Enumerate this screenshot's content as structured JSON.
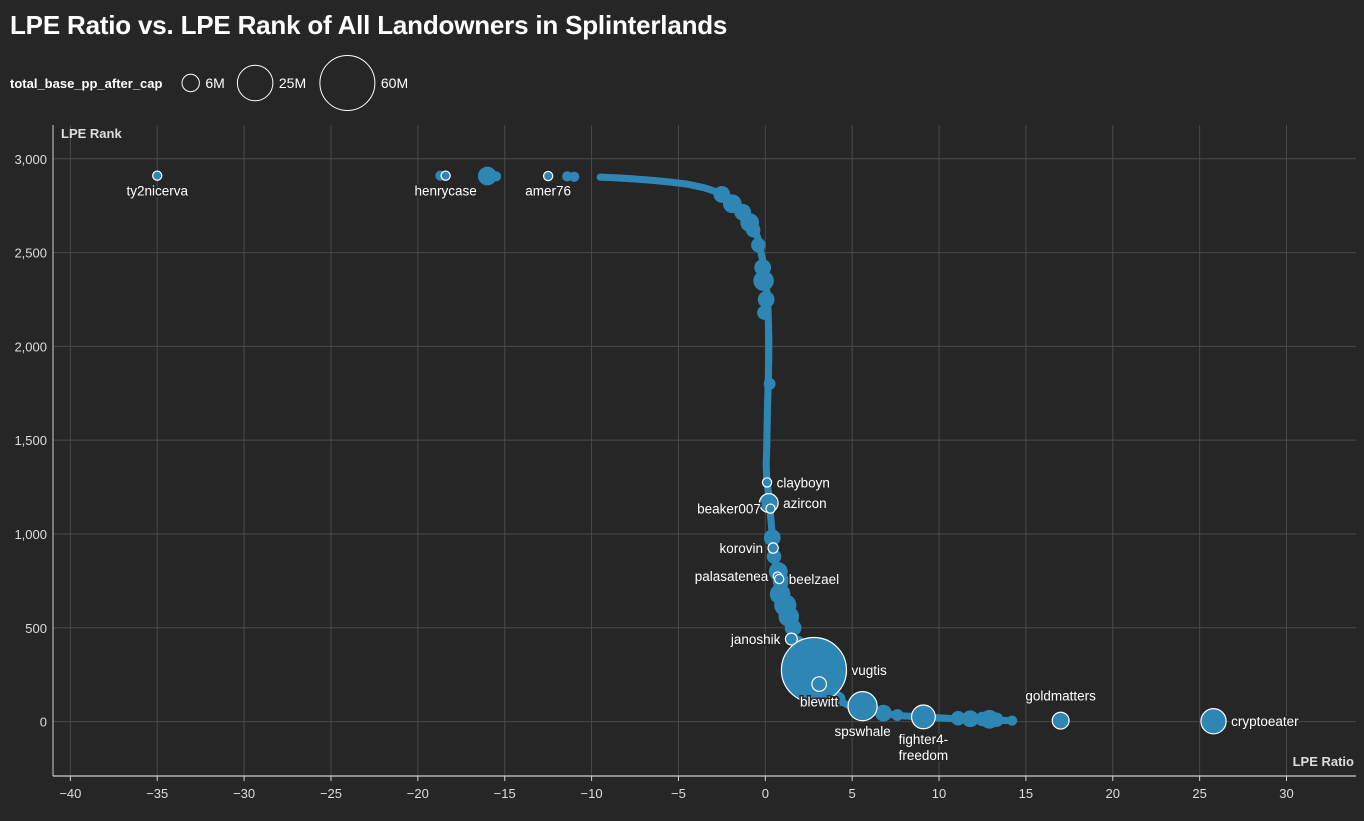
{
  "chart_data": {
    "type": "scatter",
    "title": "LPE Ratio vs. LPE Rank of All Landowners in Splinterlands",
    "xlabel": "LPE Ratio",
    "ylabel": "LPE Rank",
    "xlim": [
      -41,
      34
    ],
    "ylim": [
      -290,
      3180
    ],
    "xticks": [
      -40,
      -35,
      -30,
      -25,
      -20,
      -15,
      -10,
      -5,
      0,
      5,
      10,
      15,
      20,
      25,
      30
    ],
    "xtick_labels": [
      "−40",
      "−35",
      "−30",
      "−25",
      "−20",
      "−15",
      "−10",
      "−5",
      "0",
      "5",
      "10",
      "15",
      "20",
      "25",
      "30"
    ],
    "yticks": [
      0,
      500,
      1000,
      1500,
      2000,
      2500,
      3000
    ],
    "ytick_labels": [
      "0",
      "500",
      "1,000",
      "1,500",
      "2,000",
      "2,500",
      "3,000"
    ],
    "grid": true,
    "size_legend": {
      "title": "total_base_pp_after_cap",
      "items": [
        {
          "label": "6M",
          "value": 6
        },
        {
          "label": "25M",
          "value": 25
        },
        {
          "label": "60M",
          "value": 60
        }
      ]
    },
    "colors": {
      "point": "#2e86b5",
      "highlight_stroke": "#ffffff",
      "background": "#262626",
      "grid": "#4a4a4a",
      "text": "#ffffff",
      "muted_text": "#dddddd"
    },
    "curve_points": [
      [
        -9.5,
        2902
      ],
      [
        -8.5,
        2898
      ],
      [
        -7.5,
        2892
      ],
      [
        -6.5,
        2885
      ],
      [
        -5.5,
        2876
      ],
      [
        -4.5,
        2865
      ],
      [
        -3.5,
        2845
      ],
      [
        -2.7,
        2820
      ],
      [
        -2.2,
        2795
      ],
      [
        -1.8,
        2765
      ],
      [
        -1.4,
        2730
      ],
      [
        -1.1,
        2700
      ],
      [
        -0.8,
        2660
      ],
      [
        -0.6,
        2620
      ],
      [
        -0.4,
        2570
      ],
      [
        -0.3,
        2520
      ],
      [
        -0.15,
        2460
      ],
      [
        -0.05,
        2400
      ],
      [
        0.05,
        2340
      ],
      [
        0.1,
        2270
      ],
      [
        0.15,
        2200
      ],
      [
        0.18,
        2120
      ],
      [
        0.2,
        2050
      ],
      [
        0.2,
        1950
      ],
      [
        0.18,
        1850
      ],
      [
        0.15,
        1750
      ],
      [
        0.12,
        1650
      ],
      [
        0.1,
        1550
      ],
      [
        0.08,
        1450
      ],
      [
        0.05,
        1370
      ],
      [
        0.08,
        1300
      ],
      [
        0.2,
        1200
      ],
      [
        0.3,
        1100
      ],
      [
        0.4,
        1000
      ],
      [
        0.5,
        900
      ],
      [
        0.65,
        800
      ],
      [
        0.8,
        720
      ],
      [
        1.0,
        640
      ],
      [
        1.2,
        560
      ],
      [
        1.5,
        480
      ],
      [
        1.8,
        400
      ],
      [
        2.3,
        300
      ],
      [
        2.8,
        230
      ],
      [
        3.4,
        170
      ],
      [
        4.1,
        120
      ],
      [
        4.8,
        85
      ],
      [
        6.0,
        55
      ],
      [
        7.0,
        40
      ],
      [
        8.0,
        30
      ],
      [
        9.0,
        25
      ],
      [
        10.0,
        20
      ],
      [
        11.0,
        15
      ],
      [
        12.0,
        12
      ],
      [
        13.0,
        10
      ],
      [
        14.0,
        5
      ]
    ],
    "blobs": [
      {
        "x": -18.7,
        "y": 2910,
        "size": 1.5
      },
      {
        "x": -16.0,
        "y": 2908,
        "size": 5
      },
      {
        "x": -15.5,
        "y": 2906,
        "size": 1.5
      },
      {
        "x": -11.4,
        "y": 2906,
        "size": 1.5
      },
      {
        "x": -11.0,
        "y": 2904,
        "size": 1.5
      },
      {
        "x": -2.5,
        "y": 2810,
        "size": 4
      },
      {
        "x": -1.9,
        "y": 2760,
        "size": 5
      },
      {
        "x": -1.3,
        "y": 2715,
        "size": 4
      },
      {
        "x": -0.9,
        "y": 2660,
        "size": 5
      },
      {
        "x": -0.7,
        "y": 2620,
        "size": 3
      },
      {
        "x": -0.4,
        "y": 2540,
        "size": 3
      },
      {
        "x": -0.15,
        "y": 2420,
        "size": 4
      },
      {
        "x": -0.1,
        "y": 2350,
        "size": 6
      },
      {
        "x": 0.05,
        "y": 2250,
        "size": 4
      },
      {
        "x": -0.05,
        "y": 2180,
        "size": 3
      },
      {
        "x": 0.25,
        "y": 1800,
        "size": 2
      },
      {
        "x": 0.4,
        "y": 980,
        "size": 4
      },
      {
        "x": 0.5,
        "y": 880,
        "size": 3
      },
      {
        "x": 0.75,
        "y": 800,
        "size": 5
      },
      {
        "x": 0.9,
        "y": 750,
        "size": 4
      },
      {
        "x": 0.85,
        "y": 680,
        "size": 6
      },
      {
        "x": 1.15,
        "y": 620,
        "size": 7
      },
      {
        "x": 1.35,
        "y": 560,
        "size": 6
      },
      {
        "x": 1.6,
        "y": 500,
        "size": 4
      },
      {
        "x": 1.85,
        "y": 420,
        "size": 3
      },
      {
        "x": 3.2,
        "y": 180,
        "size": 4
      },
      {
        "x": 4.2,
        "y": 120,
        "size": 3
      },
      {
        "x": 6.8,
        "y": 45,
        "size": 4
      },
      {
        "x": 7.6,
        "y": 35,
        "size": 2
      },
      {
        "x": 11.1,
        "y": 18,
        "size": 3
      },
      {
        "x": 11.8,
        "y": 15,
        "size": 4
      },
      {
        "x": 12.5,
        "y": 14,
        "size": 3
      },
      {
        "x": 12.9,
        "y": 12,
        "size": 5
      },
      {
        "x": 13.3,
        "y": 10,
        "size": 3
      },
      {
        "x": 14.2,
        "y": 5,
        "size": 1.5
      }
    ],
    "labeled_points": [
      {
        "label": "ty2nicerva",
        "x": -35.0,
        "y": 2910,
        "size": 1.2,
        "anchor": "middle",
        "pos": "below"
      },
      {
        "label": "henrycase",
        "x": -18.4,
        "y": 2910,
        "size": 1.2,
        "anchor": "middle",
        "pos": "below"
      },
      {
        "label": "amer76",
        "x": -12.5,
        "y": 2908,
        "size": 1.2,
        "anchor": "middle",
        "pos": "below"
      },
      {
        "label": "clayboyn",
        "x": 0.1,
        "y": 1275,
        "size": 1.2,
        "anchor": "start",
        "pos": "right"
      },
      {
        "label": "azircon",
        "x": 0.2,
        "y": 1165,
        "size": 5,
        "anchor": "start",
        "pos": "right"
      },
      {
        "label": "beaker007",
        "x": 0.3,
        "y": 1135,
        "size": 1.2,
        "anchor": "end",
        "pos": "left"
      },
      {
        "label": "korovin",
        "x": 0.45,
        "y": 925,
        "size": 1.5,
        "anchor": "end",
        "pos": "left"
      },
      {
        "label": "palasatenea",
        "x": 0.7,
        "y": 775,
        "size": 1,
        "anchor": "end",
        "pos": "left"
      },
      {
        "label": "beelzael",
        "x": 0.8,
        "y": 760,
        "size": 1.2,
        "anchor": "start",
        "pos": "right"
      },
      {
        "label": "janoshik",
        "x": 1.5,
        "y": 440,
        "size": 2,
        "anchor": "end",
        "pos": "left"
      },
      {
        "label": "vugtis",
        "x": 2.8,
        "y": 275,
        "size": 60,
        "anchor": "start",
        "pos": "right"
      },
      {
        "label": "blewitt",
        "x": 3.1,
        "y": 200,
        "size": 3,
        "anchor": "middle",
        "pos": "below"
      },
      {
        "label": "spswhale",
        "x": 5.6,
        "y": 82,
        "size": 12,
        "anchor": "middle",
        "pos": "below"
      },
      {
        "label": "fighter4-\nfreedom",
        "x": 9.1,
        "y": 25,
        "size": 8,
        "anchor": "middle",
        "pos": "below"
      },
      {
        "label": "goldmatters",
        "x": 17.0,
        "y": 5,
        "size": 4,
        "anchor": "middle",
        "pos": "above"
      },
      {
        "label": "cryptoeater",
        "x": 25.8,
        "y": 2,
        "size": 9,
        "anchor": "start",
        "pos": "right"
      }
    ]
  }
}
